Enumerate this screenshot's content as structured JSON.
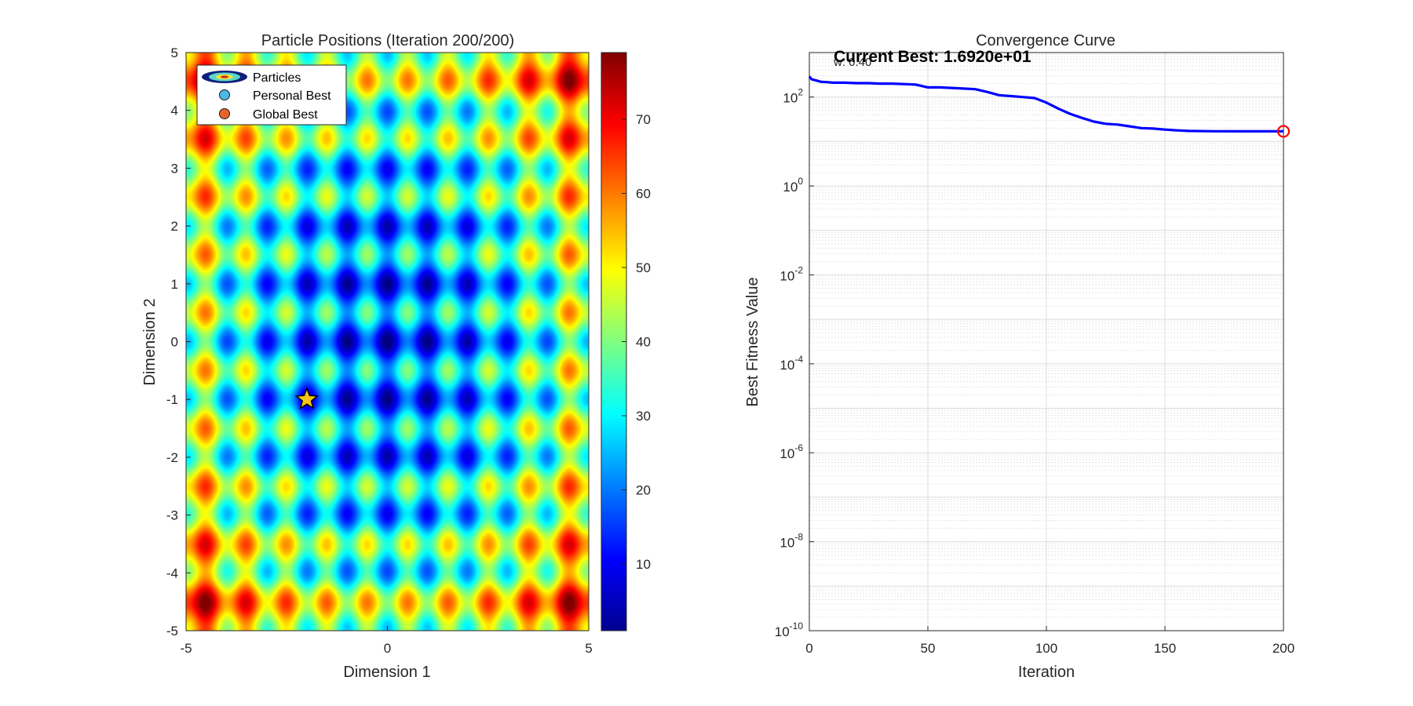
{
  "chart_data": [
    {
      "type": "heatmap",
      "title": "Particle Positions (Iteration 200/200)",
      "xlabel": "Dimension 1",
      "ylabel": "Dimension 2",
      "xlim": [
        -5,
        5
      ],
      "ylim": [
        -5,
        5
      ],
      "xticks": [
        "-5",
        "0",
        "5"
      ],
      "yticks": [
        "5",
        "4",
        "3",
        "2",
        "1",
        "0",
        "-1",
        "-2",
        "-3",
        "-4",
        "-5"
      ],
      "colorbar": {
        "ticks": [
          "70",
          "60",
          "50",
          "40",
          "30",
          "20",
          "10"
        ],
        "range": [
          1,
          79
        ],
        "colormap": "jet"
      },
      "legend": {
        "placement": "top-left",
        "items": [
          {
            "label": "Particles",
            "marker": "ellipse-icon",
            "color": "#0f1f7a"
          },
          {
            "label": "Personal Best",
            "marker": "circle-icon",
            "color": "#4db8e8"
          },
          {
            "label": "Global Best",
            "marker": "circle-icon",
            "color": "#e8642a"
          }
        ]
      },
      "global_best_marker": {
        "x": -2.0,
        "y": -1.0,
        "symbol": "star-icon",
        "color": "#f5c518"
      }
    },
    {
      "type": "line",
      "title": "Convergence Curve",
      "xlabel": "Iteration",
      "ylabel": "Best Fitness Value",
      "xlim": [
        0,
        200
      ],
      "ylim": [
        1e-10,
        1000
      ],
      "yscale": "log",
      "grid": true,
      "xticks": [
        "0",
        "50",
        "100",
        "150",
        "200"
      ],
      "yticks": [
        {
          "base": "10",
          "exp": "2"
        },
        {
          "base": "10",
          "exp": "0"
        },
        {
          "base": "10",
          "exp": "-2"
        },
        {
          "base": "10",
          "exp": "-4"
        },
        {
          "base": "10",
          "exp": "-6"
        },
        {
          "base": "10",
          "exp": "-8"
        },
        {
          "base": "10",
          "exp": "-10"
        }
      ],
      "series_color": "#0000ff",
      "x": [
        0,
        1,
        3,
        5,
        8,
        10,
        15,
        20,
        25,
        30,
        35,
        40,
        45,
        50,
        55,
        60,
        65,
        70,
        75,
        80,
        85,
        90,
        95,
        100,
        105,
        110,
        115,
        120,
        125,
        130,
        135,
        140,
        145,
        150,
        155,
        160,
        170,
        180,
        190,
        200
      ],
      "y": [
        290,
        250,
        235,
        220,
        215,
        210,
        210,
        205,
        205,
        200,
        200,
        195,
        190,
        165,
        165,
        160,
        155,
        150,
        130,
        110,
        105,
        100,
        95,
        75,
        55,
        42,
        34,
        28,
        25,
        24,
        22,
        20,
        19.5,
        18.5,
        17.8,
        17.3,
        17.0,
        16.95,
        16.93,
        16.92
      ],
      "final_point": {
        "x": 200,
        "y": 16.92,
        "marker": "circle-icon",
        "color": "#ff0000"
      },
      "annotations": {
        "current_best": "Current Best: 1.6920e+01",
        "w_label": "w: 0.40"
      }
    }
  ]
}
